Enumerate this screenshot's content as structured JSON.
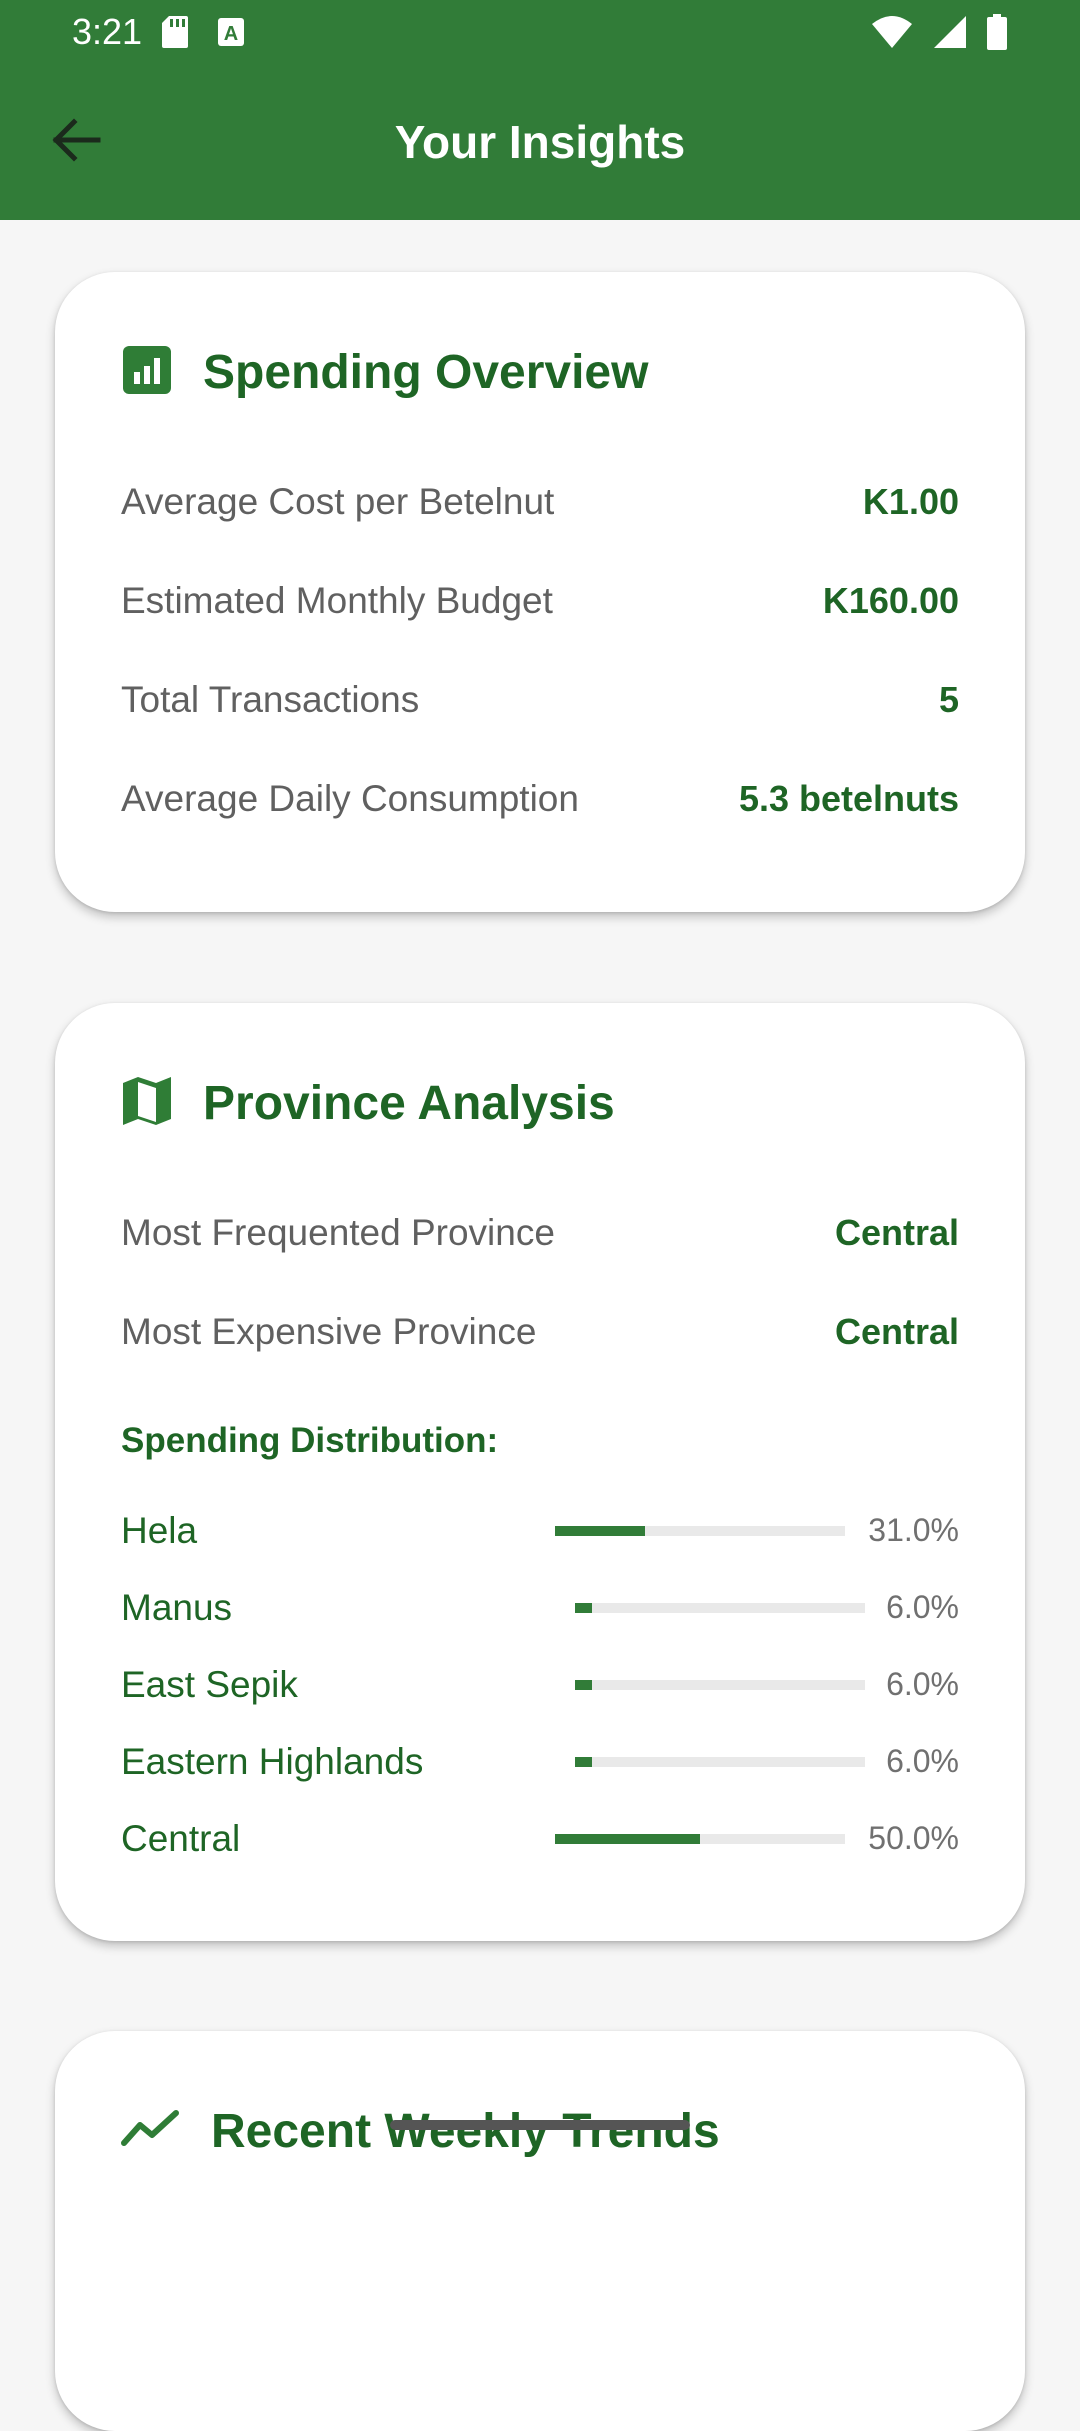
{
  "status_bar": {
    "time": "3:21",
    "icons": [
      "sd-card-icon",
      "text-a-icon",
      "wifi-icon",
      "cell-signal-icon",
      "battery-icon"
    ]
  },
  "app_bar": {
    "title": "Your Insights",
    "back_icon": "back-arrow-icon"
  },
  "spending_overview": {
    "title": "Spending Overview",
    "icon": "bar-chart-icon",
    "rows": [
      {
        "label": "Average Cost per Betelnut",
        "value": "K1.00"
      },
      {
        "label": "Estimated Monthly Budget",
        "value": "K160.00"
      },
      {
        "label": "Total Transactions",
        "value": "5"
      },
      {
        "label": "Average Daily Consumption",
        "value": "5.3 betelnuts"
      }
    ]
  },
  "province_analysis": {
    "title": "Province Analysis",
    "icon": "map-icon",
    "rows": [
      {
        "label": "Most Frequented Province",
        "value": "Central"
      },
      {
        "label": "Most Expensive Province",
        "value": "Central"
      }
    ],
    "distribution_title": "Spending Distribution:",
    "distribution": [
      {
        "name": "Hela",
        "percent_label": "31.0%",
        "fraction": 0.31
      },
      {
        "name": "Manus",
        "percent_label": "6.0%",
        "fraction": 0.06
      },
      {
        "name": "East Sepik",
        "percent_label": "6.0%",
        "fraction": 0.06
      },
      {
        "name": "Eastern Highlands",
        "percent_label": "6.0%",
        "fraction": 0.06
      },
      {
        "name": "Central",
        "percent_label": "50.0%",
        "fraction": 0.5
      }
    ]
  },
  "weekly_trends": {
    "title": "Recent Weekly Trends",
    "icon": "trending-line-icon"
  },
  "colors": {
    "primary": "#317c38",
    "primary_dark_text": "#1e6525",
    "background": "#f6f6f6",
    "card": "#ffffff"
  }
}
